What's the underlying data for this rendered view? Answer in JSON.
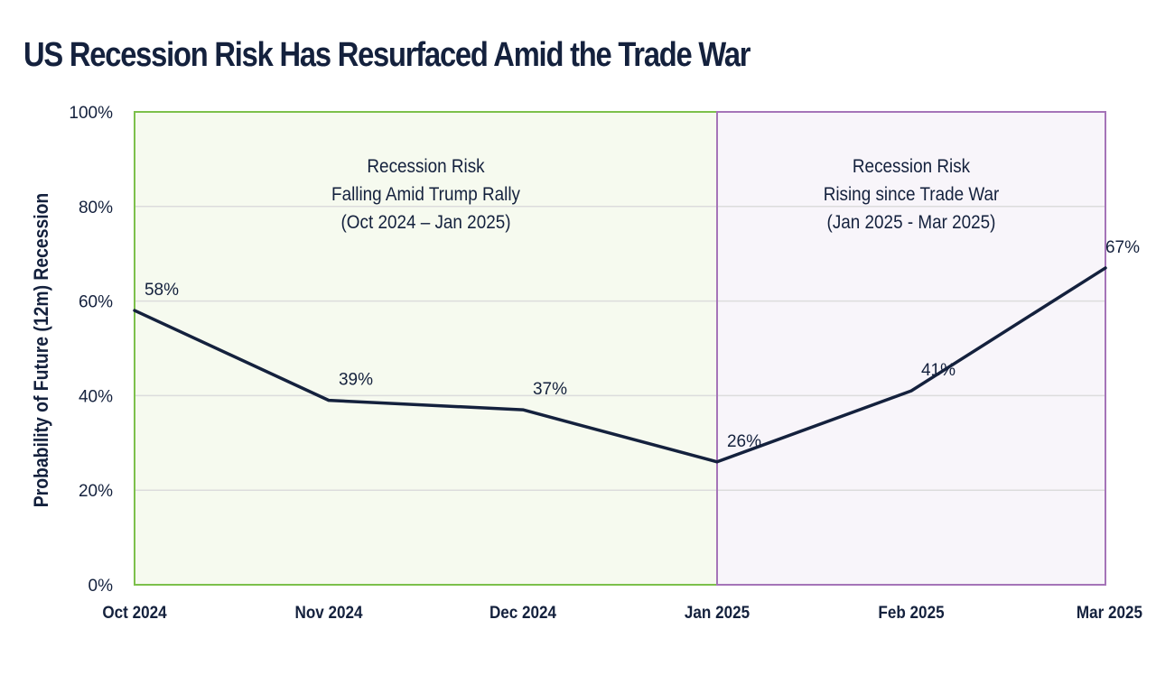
{
  "chart_data": {
    "type": "line",
    "title": "US Recession Risk Has Resurfaced Amid the Trade War",
    "xlabel": "",
    "ylabel": "Probability of Future (12m) Recession",
    "categories": [
      "Oct 2024",
      "Nov 2024",
      "Dec 2024",
      "Jan 2025",
      "Feb 2025",
      "Mar 2025"
    ],
    "series": [
      {
        "values": [
          58,
          39,
          37,
          26,
          41,
          67
        ],
        "data_labels": [
          "58%",
          "39%",
          "37%",
          "26%",
          "41%",
          "67%"
        ],
        "color": "#14213d"
      }
    ],
    "ylim": [
      0,
      100
    ],
    "yticks": [
      0,
      20,
      40,
      60,
      80,
      100
    ],
    "ytick_labels": [
      "0%",
      "20%",
      "40%",
      "60%",
      "80%",
      "100%"
    ],
    "grid": "horizontal",
    "regions": [
      {
        "from": "Oct 2024",
        "to": "Jan 2025",
        "lines": [
          "Recession Risk",
          "Falling Amid Trump Rally",
          "(Oct 2024 – Jan 2025)"
        ],
        "fill": "#f6faef",
        "border": "#7cc04b"
      },
      {
        "from": "Jan 2025",
        "to": "Mar 2025",
        "lines": [
          "Recession Risk",
          "Rising since Trade War",
          "(Jan 2025 - Mar 2025)"
        ],
        "fill": "#f8f5fa",
        "border": "#a574b8"
      }
    ]
  }
}
